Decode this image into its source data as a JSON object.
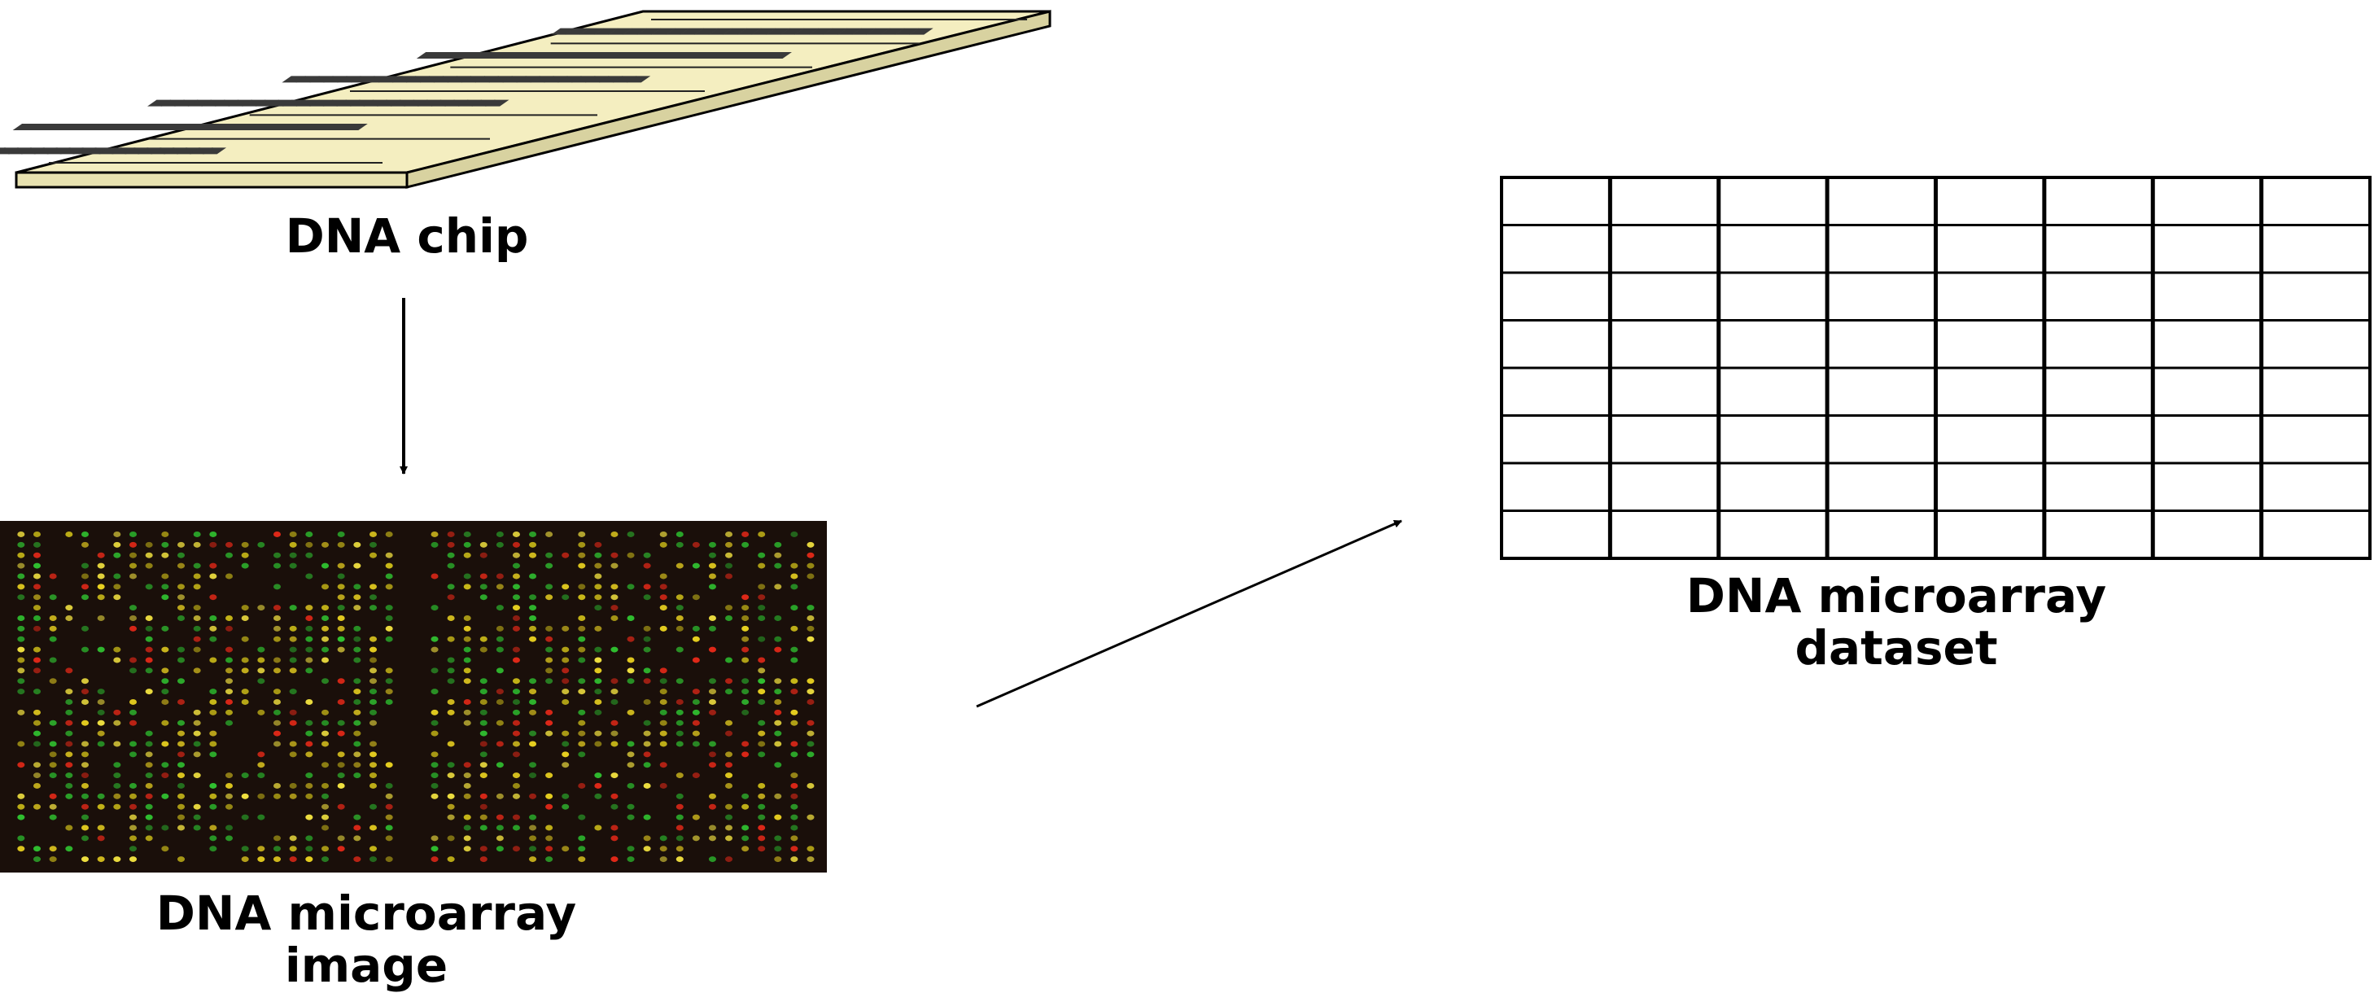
{
  "labels": {
    "chip": "DNA chip",
    "image_line1": "DNA microarray",
    "image_line2": "image",
    "dataset_line1": "DNA microarray",
    "dataset_line2": "dataset"
  },
  "dataset_grid": {
    "rows": 8,
    "cols": 8
  },
  "chip": {
    "well_rows": 6,
    "well_cols": 26
  },
  "microarray": {
    "spot_colors": [
      "#e8d020",
      "#f0e040",
      "#30c030",
      "#e02818",
      "#c8b818",
      "#2aa82a"
    ],
    "background_color": "#1a0f0a"
  }
}
